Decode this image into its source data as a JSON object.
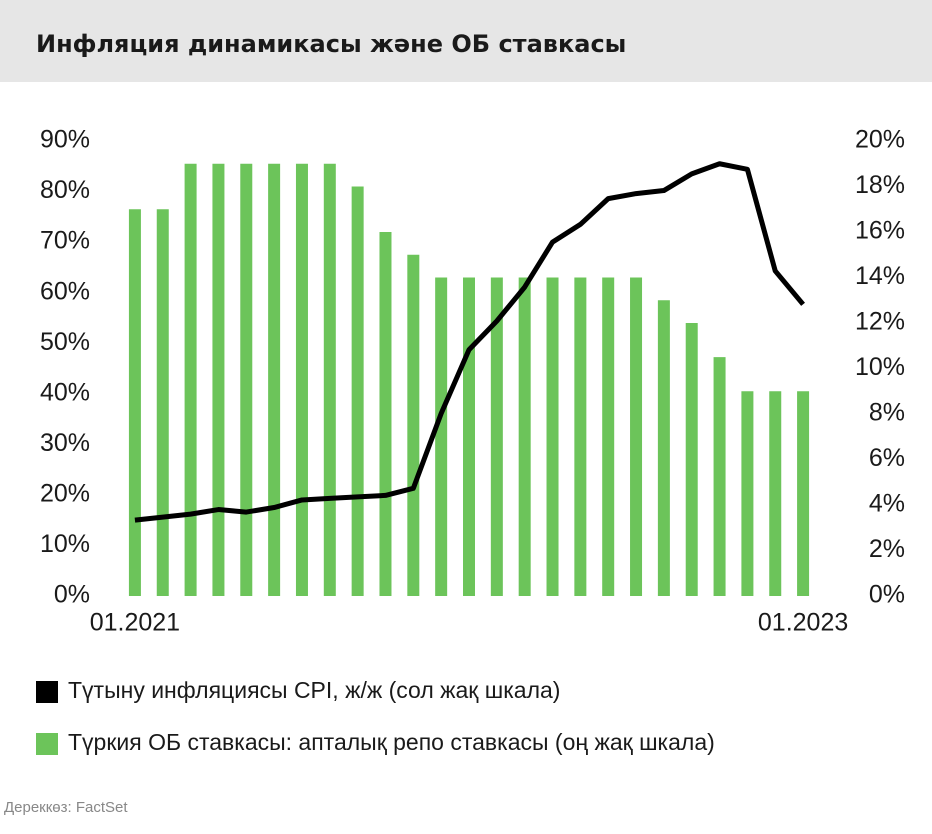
{
  "chart_data": {
    "type": "combo",
    "title": "Инфляция динамикасы және ОБ ставкасы",
    "source": "Дереккөз: FactSet",
    "categories": [
      "01.2021",
      null,
      null,
      null,
      null,
      null,
      null,
      null,
      null,
      null,
      null,
      null,
      null,
      null,
      null,
      null,
      null,
      null,
      null,
      null,
      null,
      null,
      null,
      null,
      "01.2023"
    ],
    "series": [
      {
        "name": "Түтыну инфляциясы CPI, ж/ж (сол жақ шкала)",
        "type": "line",
        "axis": "y",
        "color": "#000000",
        "values": [
          15.0,
          15.6,
          16.2,
          17.1,
          16.6,
          17.5,
          19.0,
          19.3,
          19.6,
          19.9,
          21.3,
          36.1,
          48.7,
          54.4,
          61.1,
          70.0,
          73.5,
          78.6,
          79.6,
          80.2,
          83.5,
          85.5,
          84.4,
          64.3,
          57.7
        ]
      },
      {
        "name": "Түркия ОБ ставкасы: апталық репо ставкасы (оң жақ шкала)",
        "type": "bar",
        "axis": "y2",
        "color": "#6cc45a",
        "values": [
          17,
          17,
          19,
          19,
          19,
          19,
          19,
          19,
          18,
          16,
          15,
          14,
          14,
          14,
          14,
          14,
          14,
          14,
          14,
          13,
          12,
          10.5,
          9,
          9,
          9
        ]
      }
    ],
    "ylim": [
      0,
      90
    ],
    "yticks": [
      {
        "value": 0,
        "label": "0%"
      },
      {
        "value": 10,
        "label": "10%"
      },
      {
        "value": 20,
        "label": "20%"
      },
      {
        "value": 30,
        "label": "30%"
      },
      {
        "value": 40,
        "label": "40%"
      },
      {
        "value": 50,
        "label": "50%"
      },
      {
        "value": 60,
        "label": "60%"
      },
      {
        "value": 70,
        "label": "70%"
      },
      {
        "value": 80,
        "label": "80%"
      },
      {
        "value": 90,
        "label": "90%"
      }
    ],
    "y2lim": [
      0,
      20
    ],
    "y2ticks": [
      {
        "value": 0,
        "label": "0%"
      },
      {
        "value": 2,
        "label": "2%"
      },
      {
        "value": 4,
        "label": "4%"
      },
      {
        "value": 6,
        "label": "6%"
      },
      {
        "value": 8,
        "label": "8%"
      },
      {
        "value": 10,
        "label": "10%"
      },
      {
        "value": 12,
        "label": "12%"
      },
      {
        "value": 14,
        "label": "14%"
      },
      {
        "value": 16,
        "label": "16%"
      },
      {
        "value": 18,
        "label": "18%"
      },
      {
        "value": 20,
        "label": "20%"
      }
    ],
    "grid": false
  }
}
